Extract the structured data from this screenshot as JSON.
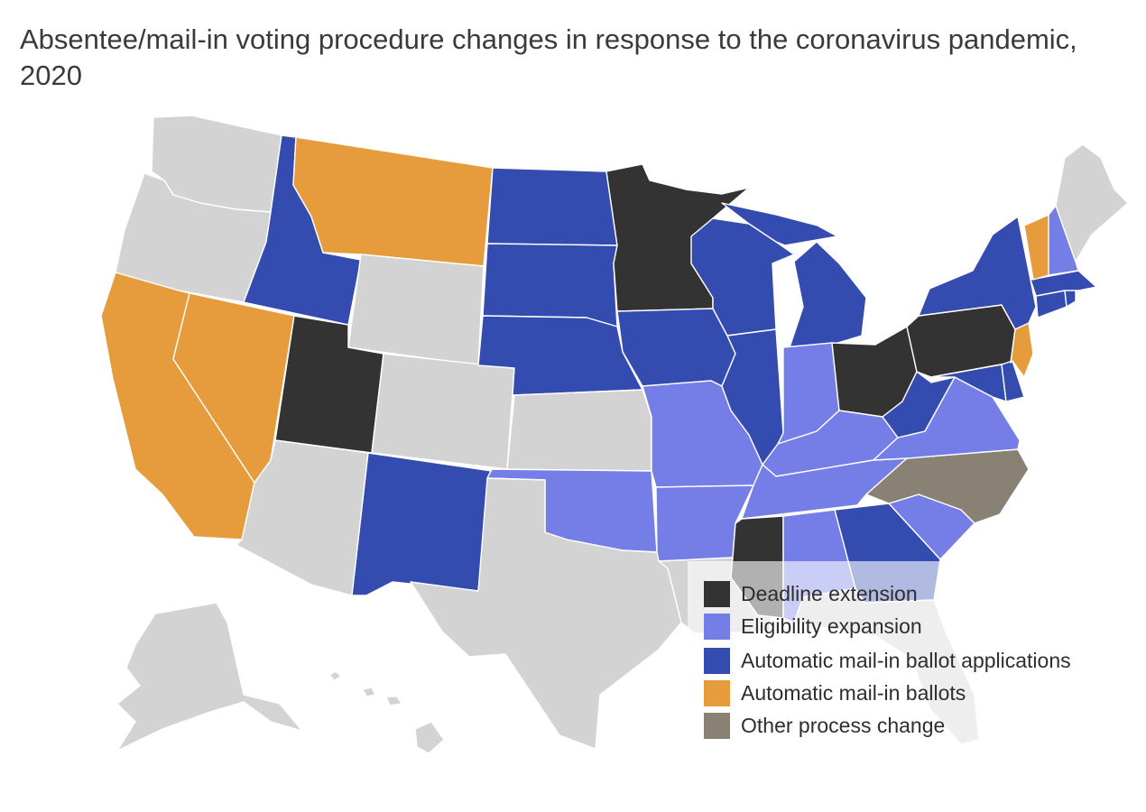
{
  "title": "Absentee/mail-in voting procedure changes in response to the coronavirus pandemic, 2020",
  "map": {
    "region": "United States",
    "categories": [
      {
        "key": "deadline",
        "label": "Deadline extension",
        "color": "#333333"
      },
      {
        "key": "eligibility",
        "label": "Eligibility expansion",
        "color": "#757de6"
      },
      {
        "key": "applications",
        "label": "Automatic mail-in ballot applications",
        "color": "#344bb0"
      },
      {
        "key": "ballots",
        "label": "Automatic mail-in ballots",
        "color": "#e69c3c"
      },
      {
        "key": "other",
        "label": "Other process change",
        "color": "#8a8175"
      },
      {
        "key": "none",
        "label": "",
        "color": "#d3d3d3"
      }
    ],
    "states": {
      "WA": "none",
      "OR": "none",
      "CA": "ballots",
      "NV": "ballots",
      "ID": "applications",
      "MT": "ballots",
      "WY": "none",
      "UT": "deadline",
      "AZ": "none",
      "CO": "none",
      "NM": "applications",
      "ND": "applications",
      "SD": "applications",
      "NE": "applications",
      "KS": "none",
      "OK": "eligibility",
      "TX": "none",
      "MN": "deadline",
      "IA": "applications",
      "MO": "eligibility",
      "AR": "eligibility",
      "LA": "none",
      "WI": "applications",
      "IL": "applications",
      "MI": "applications",
      "IN": "eligibility",
      "OH": "deadline",
      "KY": "eligibility",
      "TN": "eligibility",
      "MS": "deadline",
      "AL": "eligibility",
      "GA": "applications",
      "FL": "none",
      "SC": "eligibility",
      "NC": "other",
      "VA": "eligibility",
      "WV": "applications",
      "MD": "applications",
      "DE": "applications",
      "PA": "deadline",
      "NJ": "ballots",
      "NY": "applications",
      "CT": "applications",
      "RI": "applications",
      "MA": "applications",
      "VT": "ballots",
      "NH": "eligibility",
      "ME": "none",
      "AK": "none",
      "HI": "none"
    }
  }
}
